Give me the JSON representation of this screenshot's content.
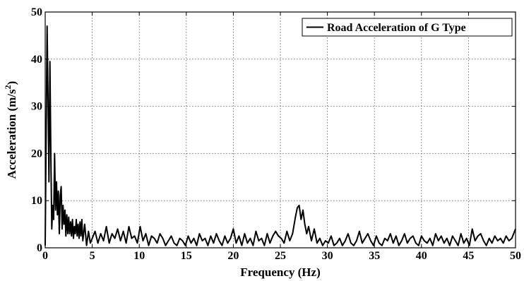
{
  "chart_data": {
    "type": "line",
    "xlabel": "Frequency (Hz)",
    "ylabel": {
      "main": "Acceleration (m/s",
      "sup": "2",
      "close": ")"
    },
    "xlim": [
      0,
      50
    ],
    "ylim": [
      0,
      50
    ],
    "xticks": [
      "0",
      "5",
      "10",
      "15",
      "20",
      "25",
      "30",
      "35",
      "40",
      "45",
      "50"
    ],
    "yticks": [
      "0",
      "10",
      "20",
      "30",
      "40",
      "50"
    ],
    "grid": true,
    "legend_position": "top-right",
    "colors": {
      "line": "#000000",
      "grid": "#555555"
    },
    "series": [
      {
        "name": "Road Acceleration of G Type",
        "x": [
          0.0,
          0.2,
          0.3,
          0.4,
          0.5,
          0.6,
          0.7,
          0.8,
          0.9,
          1.0,
          1.1,
          1.2,
          1.3,
          1.4,
          1.5,
          1.6,
          1.7,
          1.8,
          1.9,
          2.0,
          2.1,
          2.2,
          2.3,
          2.4,
          2.5,
          2.6,
          2.7,
          2.8,
          2.9,
          3.0,
          3.1,
          3.2,
          3.3,
          3.4,
          3.5,
          3.6,
          3.7,
          3.8,
          3.9,
          4.0,
          4.2,
          4.4,
          4.6,
          4.8,
          5.0,
          5.3,
          5.6,
          5.9,
          6.2,
          6.5,
          6.8,
          7.1,
          7.4,
          7.7,
          8.0,
          8.3,
          8.6,
          8.9,
          9.2,
          9.5,
          9.8,
          10.1,
          10.4,
          10.7,
          11.0,
          11.3,
          11.6,
          11.9,
          12.2,
          12.5,
          12.8,
          13.1,
          13.4,
          13.7,
          14.0,
          14.3,
          14.6,
          14.9,
          15.2,
          15.5,
          15.8,
          16.1,
          16.4,
          16.7,
          17.0,
          17.3,
          17.6,
          17.9,
          18.2,
          18.5,
          18.8,
          19.1,
          19.4,
          19.7,
          20.0,
          20.3,
          20.6,
          20.9,
          21.2,
          21.5,
          21.8,
          22.1,
          22.4,
          22.7,
          23.0,
          23.3,
          23.6,
          23.9,
          24.2,
          24.5,
          24.8,
          25.1,
          25.4,
          25.7,
          26.0,
          26.3,
          26.6,
          26.8,
          27.0,
          27.2,
          27.4,
          27.6,
          27.8,
          28.0,
          28.3,
          28.6,
          28.9,
          29.2,
          29.5,
          29.8,
          30.1,
          30.4,
          30.7,
          31.0,
          31.3,
          31.6,
          31.9,
          32.2,
          32.5,
          32.8,
          33.1,
          33.4,
          33.7,
          34.0,
          34.3,
          34.6,
          34.9,
          35.2,
          35.5,
          35.8,
          36.1,
          36.4,
          36.7,
          37.0,
          37.3,
          37.6,
          37.9,
          38.2,
          38.5,
          38.8,
          39.1,
          39.4,
          39.7,
          40.0,
          40.3,
          40.6,
          40.9,
          41.2,
          41.5,
          41.8,
          42.1,
          42.4,
          42.7,
          43.0,
          43.3,
          43.6,
          43.9,
          44.2,
          44.5,
          44.8,
          45.1,
          45.4,
          45.7,
          46.0,
          46.3,
          46.6,
          46.9,
          47.2,
          47.5,
          47.8,
          48.1,
          48.4,
          48.7,
          49.0,
          49.3,
          49.6,
          50.0
        ],
        "values": [
          0.5,
          47.0,
          32.0,
          14.0,
          39.5,
          20.0,
          4.0,
          9.0,
          6.0,
          20.0,
          8.0,
          14.0,
          7.0,
          12.0,
          3.0,
          11.0,
          13.0,
          4.0,
          9.0,
          5.0,
          8.0,
          2.5,
          7.0,
          3.0,
          6.5,
          3.0,
          5.5,
          2.5,
          6.0,
          2.0,
          4.5,
          3.0,
          6.0,
          2.5,
          5.0,
          2.0,
          5.5,
          2.5,
          6.0,
          1.5,
          5.0,
          0.5,
          3.5,
          1.0,
          2.0,
          3.5,
          1.0,
          3.0,
          1.5,
          4.5,
          1.0,
          3.0,
          2.0,
          4.0,
          1.5,
          3.5,
          1.0,
          4.5,
          2.0,
          2.5,
          1.0,
          4.5,
          1.5,
          3.0,
          0.5,
          2.5,
          2.0,
          1.0,
          3.0,
          2.0,
          0.5,
          1.5,
          2.5,
          1.0,
          0.5,
          2.0,
          1.5,
          0.5,
          2.5,
          1.0,
          2.0,
          0.5,
          3.0,
          1.5,
          2.0,
          0.5,
          2.5,
          1.0,
          3.0,
          1.5,
          0.5,
          2.5,
          1.0,
          2.0,
          4.0,
          1.0,
          2.5,
          0.5,
          3.0,
          1.0,
          2.0,
          0.5,
          3.5,
          1.5,
          2.0,
          0.5,
          3.0,
          1.0,
          2.5,
          3.5,
          2.5,
          2.0,
          1.0,
          3.5,
          1.5,
          3.0,
          6.5,
          8.5,
          9.0,
          6.0,
          8.0,
          5.0,
          3.0,
          4.5,
          1.5,
          4.0,
          1.0,
          2.0,
          0.5,
          1.5,
          1.0,
          2.5,
          0.5,
          1.0,
          2.0,
          0.5,
          1.5,
          3.0,
          1.0,
          0.5,
          1.5,
          3.5,
          1.0,
          2.0,
          3.0,
          1.5,
          0.5,
          2.5,
          1.0,
          0.5,
          2.0,
          1.5,
          3.0,
          1.0,
          2.5,
          0.5,
          1.5,
          3.0,
          1.0,
          2.0,
          2.5,
          1.0,
          0.5,
          2.5,
          1.5,
          1.0,
          2.0,
          0.5,
          3.0,
          1.5,
          2.5,
          1.0,
          2.0,
          0.5,
          2.5,
          1.5,
          0.5,
          3.0,
          1.0,
          2.0,
          0.5,
          4.0,
          1.5,
          2.5,
          3.0,
          1.5,
          0.5,
          2.0,
          1.0,
          2.5,
          1.5,
          2.0,
          1.0,
          2.5,
          1.5,
          2.0,
          4.0
        ]
      }
    ]
  }
}
